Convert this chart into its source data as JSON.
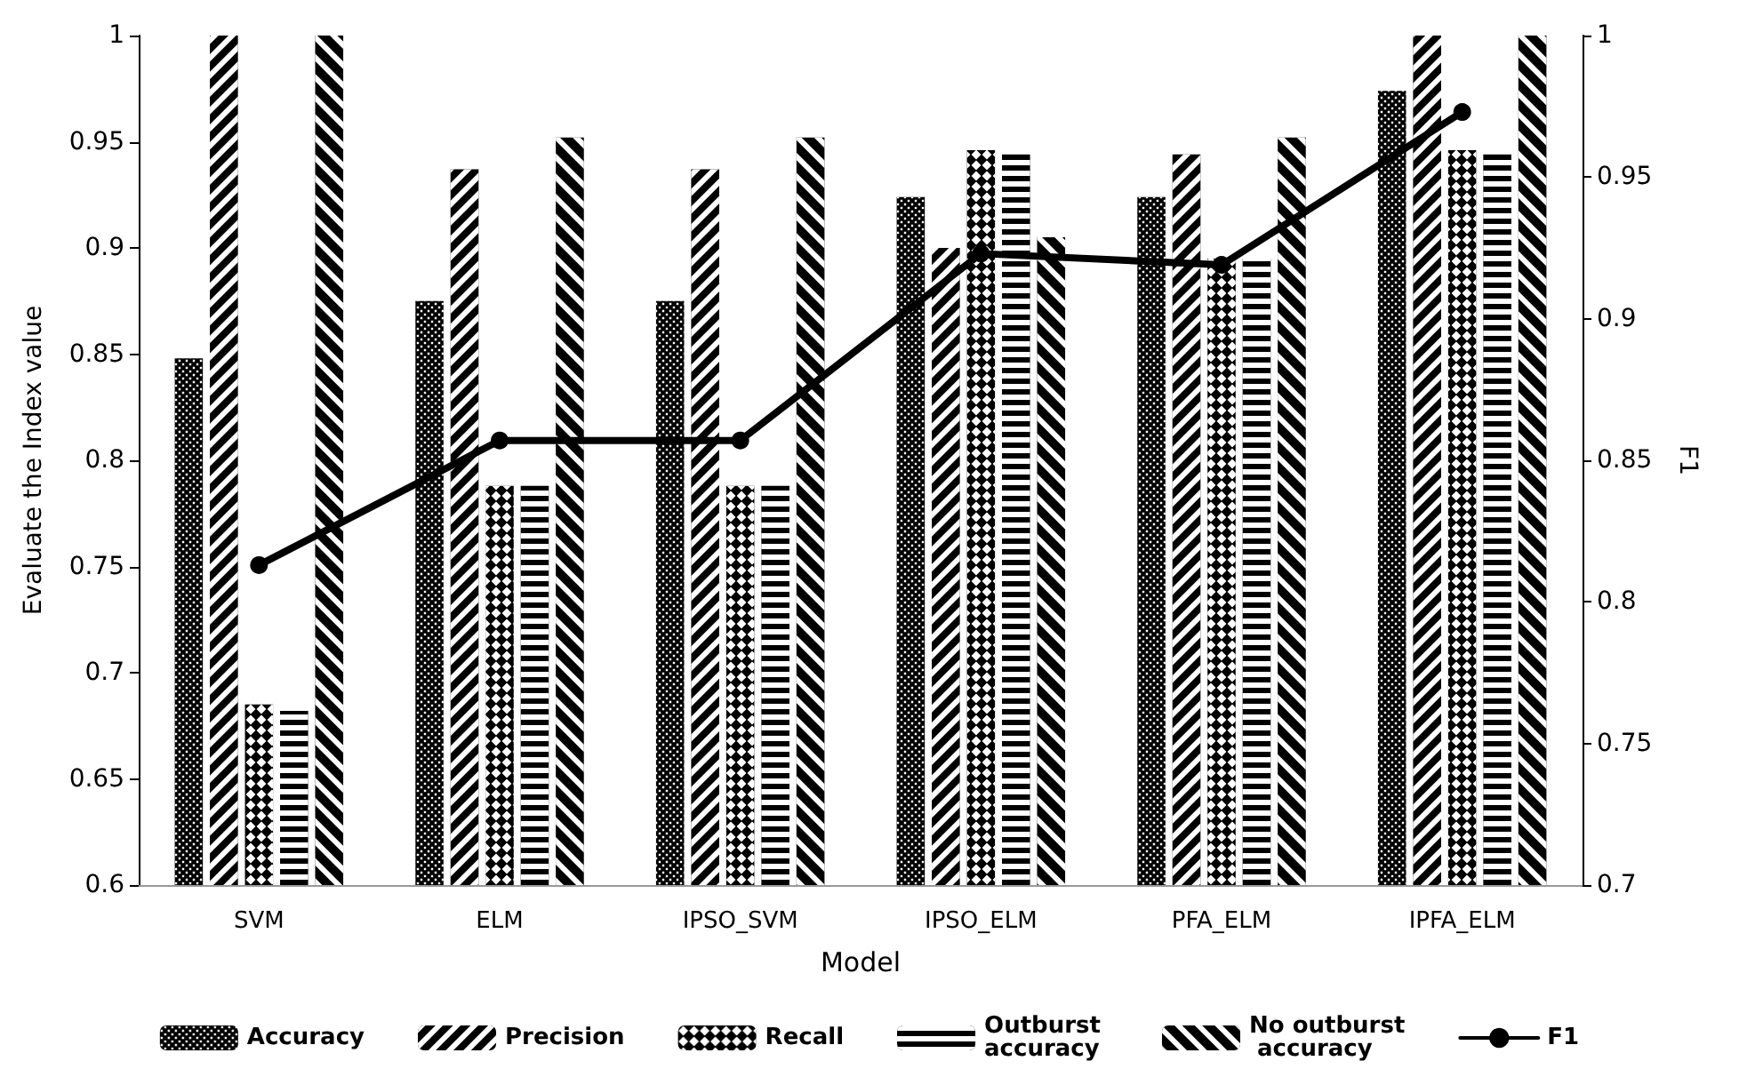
{
  "chart_data": {
    "type": "bar",
    "xlabel": "Model",
    "ylabel": "Evaluate the Index value",
    "y2label": "F1",
    "categories": [
      "SVM",
      "ELM",
      "IPSO_SVM",
      "IPSO_ELM",
      "PFA_ELM",
      "IPFA_ELM"
    ],
    "series": [
      {
        "name": "Accuracy",
        "color": "#000000",
        "values": [
          0.848,
          0.875,
          0.875,
          0.924,
          0.924,
          0.974
        ]
      },
      {
        "name": "Precision",
        "color": "#000000",
        "values": [
          1,
          0.937,
          0.937,
          0.9,
          0.944,
          1
        ]
      },
      {
        "name": "Recall",
        "color": "#000000",
        "values": [
          0.685,
          0.788,
          0.788,
          0.946,
          0.895,
          0.946
        ]
      },
      {
        "name": "Outburst accuracy",
        "color": "#000000",
        "values": [
          0.682,
          0.788,
          0.788,
          0.944,
          0.895,
          0.944
        ]
      },
      {
        "name": "No outburst accuracy",
        "color": "#000000",
        "values": [
          1,
          0.952,
          0.952,
          0.905,
          0.952,
          1
        ]
      },
      {
        "name": "F1",
        "type": "line",
        "axis": "y2",
        "color": "#000000",
        "values": [
          0.813,
          0.857,
          0.857,
          0.923,
          0.919,
          0.973
        ]
      }
    ],
    "ylim": [
      0.6,
      1
    ],
    "yticks": [
      0.6,
      0.65,
      0.7,
      0.75,
      0.8,
      0.85,
      0.9,
      0.95,
      1
    ],
    "y2lim": [
      0.7,
      1
    ],
    "y2ticks": [
      0.7,
      0.75,
      0.8,
      0.85,
      0.9,
      0.95,
      1
    ],
    "grid": false,
    "legend": "bottom",
    "marker": "circle",
    "line_style": "solid"
  }
}
